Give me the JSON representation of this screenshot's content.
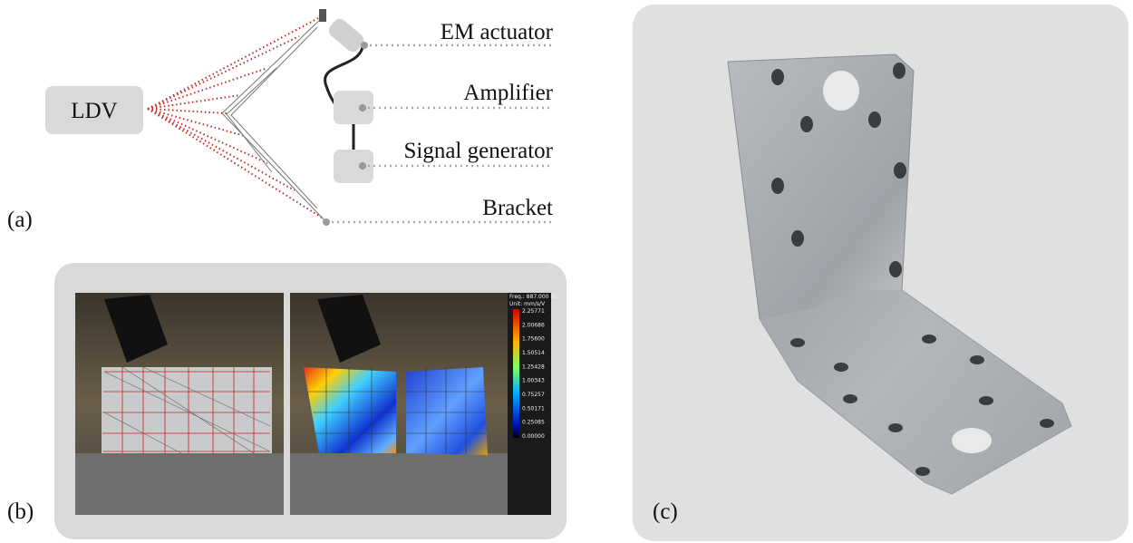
{
  "panel_a": {
    "label": "(a)",
    "ldv": "LDV",
    "components": [
      "EM actuator",
      "Amplifier",
      "Signal generator",
      "Bracket"
    ]
  },
  "panel_b": {
    "label": "(b)",
    "colorbar": {
      "frequency": "Freq.: 887.000 Hz",
      "unit": "Unit: mm/s/V",
      "ticks": [
        "2.25771",
        "2.00686",
        "1.75600",
        "1.50514",
        "1.25428",
        "1.00343",
        "0.75257",
        "0.50171",
        "0.25085",
        "0.00000"
      ]
    }
  },
  "panel_c": {
    "label": "(c)"
  }
}
